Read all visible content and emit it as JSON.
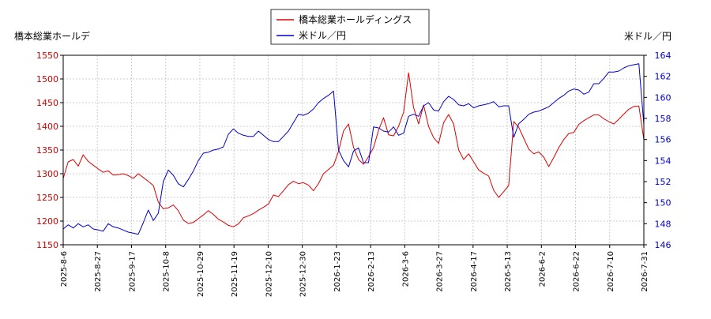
{
  "chart_data": {
    "type": "line",
    "left_axis_label": "橋本総業ホールデ",
    "right_axis_label": "米ドル／円",
    "x_tick_labels": [
      "2025-8-6",
      "2025-8-27",
      "2025-9-17",
      "2025-10-8",
      "2025-10-29",
      "2025-11-19",
      "2025-12-10",
      "2025-12-30",
      "2026-1-23",
      "2026-2-13",
      "2026-3-6",
      "2026-3-27",
      "2026-4-17",
      "2026-5-13",
      "2026-6-2",
      "2026-6-22",
      "2026-7-10",
      "2026-7-31"
    ],
    "y_left": {
      "ticks": [
        1150,
        1200,
        1250,
        1300,
        1350,
        1400,
        1450,
        1500,
        1550
      ],
      "min": 1150,
      "max": 1550
    },
    "y_right": {
      "ticks": [
        146,
        148,
        150,
        152,
        154,
        156,
        158,
        160,
        162,
        164
      ],
      "min": 146,
      "max": 164
    },
    "grid": true,
    "legend_position": "top-center",
    "series": [
      {
        "name": "橋本総業ホールディングス",
        "color": "#dd0000",
        "axis": "left",
        "values": [
          1290,
          1325,
          1330,
          1316,
          1340,
          1326,
          1318,
          1310,
          1303,
          1306,
          1297,
          1298,
          1300,
          1296,
          1290,
          1300,
          1292,
          1284,
          1275,
          1240,
          1226,
          1228,
          1234,
          1222,
          1202,
          1195,
          1197,
          1205,
          1213,
          1222,
          1214,
          1204,
          1198,
          1191,
          1188,
          1194,
          1207,
          1211,
          1216,
          1223,
          1229,
          1236,
          1255,
          1252,
          1264,
          1277,
          1284,
          1279,
          1281,
          1276,
          1264,
          1279,
          1300,
          1309,
          1318,
          1347,
          1390,
          1405,
          1356,
          1330,
          1320,
          1336,
          1355,
          1392,
          1418,
          1382,
          1380,
          1400,
          1430,
          1513,
          1440,
          1405,
          1445,
          1400,
          1376,
          1364,
          1408,
          1425,
          1405,
          1350,
          1330,
          1342,
          1325,
          1308,
          1301,
          1295,
          1265,
          1250,
          1262,
          1275,
          1410,
          1398,
          1375,
          1352,
          1342,
          1346,
          1335,
          1315,
          1334,
          1355,
          1372,
          1385,
          1387,
          1404,
          1412,
          1418,
          1424,
          1424,
          1416,
          1410,
          1405,
          1415,
          1426,
          1436,
          1442,
          1443,
          1372
        ]
      },
      {
        "name": "米ドル／円",
        "color": "#0000cc",
        "axis": "right",
        "values": [
          147.5,
          147.9,
          147.6,
          148.0,
          147.7,
          147.9,
          147.5,
          147.4,
          147.3,
          148.0,
          147.7,
          147.6,
          147.4,
          147.2,
          147.1,
          147.0,
          148.1,
          149.3,
          148.3,
          149.0,
          152.0,
          153.1,
          152.6,
          151.8,
          151.5,
          152.2,
          153.0,
          154.0,
          154.7,
          154.8,
          155.0,
          155.1,
          155.3,
          156.5,
          157.0,
          156.6,
          156.4,
          156.3,
          156.3,
          156.8,
          156.4,
          156.0,
          155.8,
          155.8,
          156.3,
          156.8,
          157.6,
          158.4,
          158.3,
          158.5,
          158.9,
          159.5,
          159.9,
          160.2,
          160.6,
          155.0,
          154.0,
          153.4,
          154.9,
          155.2,
          153.8,
          153.8,
          157.2,
          157.1,
          156.8,
          156.7,
          157.2,
          156.4,
          156.6,
          158.2,
          158.4,
          158.2,
          159.2,
          159.5,
          158.8,
          158.7,
          159.6,
          160.1,
          159.8,
          159.3,
          159.2,
          159.4,
          159.0,
          159.2,
          159.3,
          159.4,
          159.6,
          159.1,
          159.2,
          159.2,
          156.2,
          157.5,
          157.9,
          158.4,
          158.6,
          158.7,
          158.9,
          159.1,
          159.5,
          159.9,
          160.2,
          160.6,
          160.8,
          160.7,
          160.3,
          160.5,
          161.3,
          161.3,
          161.8,
          162.4,
          162.4,
          162.5,
          162.8,
          163.0,
          163.1,
          163.2,
          157.4
        ]
      }
    ]
  }
}
